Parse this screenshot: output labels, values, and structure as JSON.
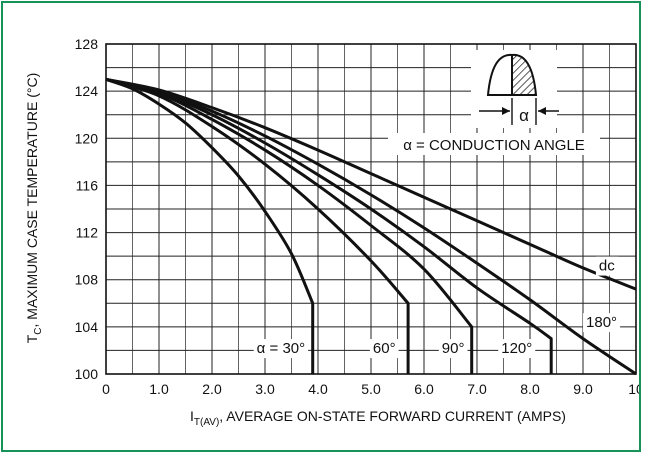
{
  "chart_data": {
    "type": "line",
    "xlabel_main": "I",
    "xlabel_sub": "T(AV)",
    "xlabel_rest": ", AVERAGE ON-STATE FORWARD CURRENT (AMPS)",
    "ylabel_main": "T",
    "ylabel_sub": "C",
    "ylabel_rest": ", MAXIMUM CASE TEMPERATURE (°C)",
    "xlim": [
      0,
      10
    ],
    "ylim": [
      100,
      128
    ],
    "x_ticks": [
      0,
      1,
      2,
      3,
      4,
      5,
      6,
      7,
      8,
      9,
      10
    ],
    "x_tick_labels": [
      "0",
      "1.0",
      "2.0",
      "3.0",
      "4.0",
      "5.0",
      "6.0",
      "7.0",
      "8.0",
      "9.0",
      "10"
    ],
    "y_ticks": [
      100,
      104,
      108,
      112,
      116,
      120,
      124,
      128
    ],
    "y_tick_labels": [
      "100",
      "104",
      "108",
      "112",
      "116",
      "120",
      "124",
      "128"
    ],
    "grid": true,
    "minor_x_step": 0.5,
    "minor_y_step": 2,
    "legend_note": "α = CONDUCTION ANGLE",
    "alpha_symbol": "α",
    "series": [
      {
        "name": "α = 30°",
        "points": [
          [
            0,
            125
          ],
          [
            0.5,
            124.2
          ],
          [
            1.0,
            122.9
          ],
          [
            1.5,
            121.3
          ],
          [
            2.0,
            119.2
          ],
          [
            2.5,
            116.8
          ],
          [
            3.0,
            113.8
          ],
          [
            3.5,
            110.2
          ],
          [
            3.9,
            106
          ]
        ],
        "drop_to": 100
      },
      {
        "name": "60°",
        "points": [
          [
            0,
            125
          ],
          [
            1.0,
            123.6
          ],
          [
            2.0,
            121.0
          ],
          [
            3.0,
            117.8
          ],
          [
            4.0,
            114.0
          ],
          [
            5.0,
            109.6
          ],
          [
            5.7,
            106
          ]
        ],
        "drop_to": 100
      },
      {
        "name": "90°",
        "points": [
          [
            0,
            125
          ],
          [
            1.0,
            123.8
          ],
          [
            2.0,
            121.6
          ],
          [
            3.0,
            119.0
          ],
          [
            4.0,
            116.0
          ],
          [
            5.0,
            112.6
          ],
          [
            6.0,
            108.9
          ],
          [
            6.9,
            104
          ]
        ],
        "drop_to": 100
      },
      {
        "name": "120°",
        "points": [
          [
            0,
            125
          ],
          [
            1.0,
            123.9
          ],
          [
            2.0,
            122.0
          ],
          [
            3.0,
            119.6
          ],
          [
            4.0,
            116.9
          ],
          [
            5.0,
            114.0
          ],
          [
            6.0,
            110.8
          ],
          [
            7.0,
            107.3
          ],
          [
            8.0,
            104.3
          ],
          [
            8.4,
            103
          ]
        ],
        "drop_to": 100
      },
      {
        "name": "180°",
        "points": [
          [
            0,
            125
          ],
          [
            1.0,
            124.0
          ],
          [
            2.0,
            122.3
          ],
          [
            3.0,
            120.2
          ],
          [
            4.0,
            117.8
          ],
          [
            5.0,
            115.2
          ],
          [
            6.0,
            112.4
          ],
          [
            7.0,
            109.4
          ],
          [
            8.0,
            106.3
          ],
          [
            9.0,
            103.0
          ],
          [
            10.0,
            100
          ]
        ]
      },
      {
        "name": "dc",
        "points": [
          [
            0,
            125
          ],
          [
            1.0,
            124.1
          ],
          [
            2.0,
            122.6
          ],
          [
            3.0,
            120.9
          ],
          [
            4.0,
            119.0
          ],
          [
            5.0,
            117.0
          ],
          [
            6.0,
            115.0
          ],
          [
            7.0,
            113.0
          ],
          [
            8.0,
            111.0
          ],
          [
            9.0,
            109.0
          ],
          [
            10.0,
            107.2
          ]
        ]
      }
    ],
    "series_labels": [
      {
        "text": "α = 30°",
        "x": 3.3,
        "y": 102.2
      },
      {
        "text": "60°",
        "x": 5.25,
        "y": 102.2
      },
      {
        "text": "90°",
        "x": 6.55,
        "y": 102.2
      },
      {
        "text": "120°",
        "x": 7.75,
        "y": 102.2
      },
      {
        "text": "180°",
        "x": 9.35,
        "y": 104.4
      },
      {
        "text": "dc",
        "x": 9.45,
        "y": 109.2
      }
    ]
  }
}
